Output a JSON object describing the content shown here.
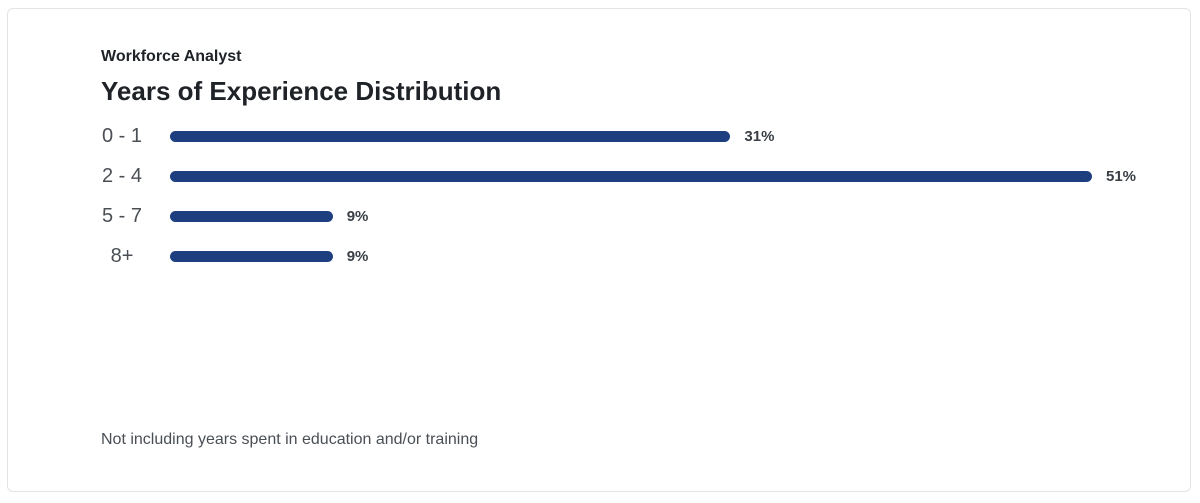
{
  "chart_data": {
    "type": "bar",
    "orientation": "horizontal",
    "subtitle": "Workforce Analyst",
    "title": "Years of Experience Distribution",
    "categories": [
      "0 - 1",
      "2 - 4",
      "5 - 7",
      "8+"
    ],
    "values": [
      31,
      51,
      9,
      9
    ],
    "value_labels": [
      "31%",
      "51%",
      "9%",
      "9%"
    ],
    "color": "#1e3f7f",
    "note": "Not including years spent in education and/or training"
  }
}
